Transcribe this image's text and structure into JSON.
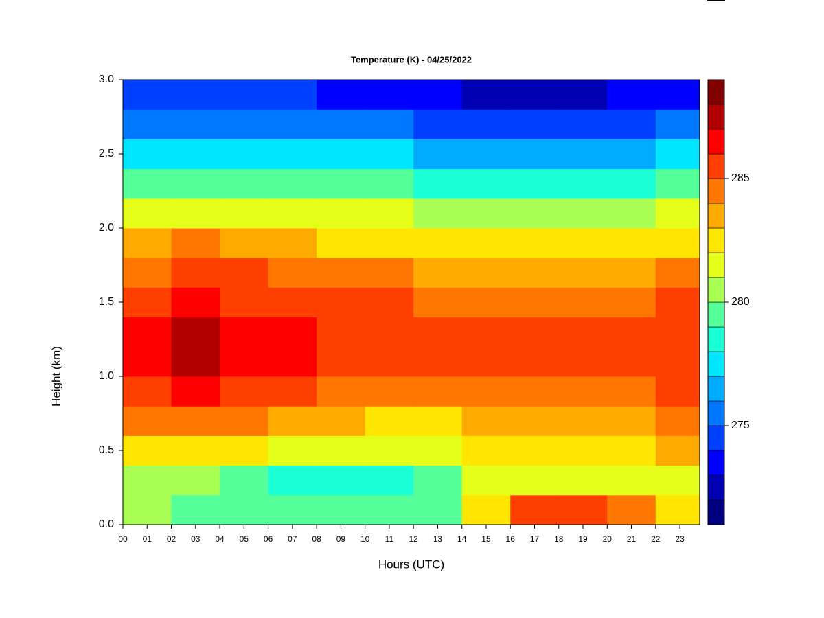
{
  "chart_data": {
    "type": "heatmap",
    "title": "Temperature (K) - 04/25/2022",
    "x_label": "Hours (UTC)",
    "y_label": "Height (km)",
    "x": [
      1,
      3,
      5,
      7,
      9,
      11,
      13,
      15,
      17,
      19,
      21,
      23
    ],
    "y": [
      0.1,
      0.3,
      0.5,
      0.7,
      0.9,
      1.1,
      1.3,
      1.5,
      1.7,
      1.9,
      2.1,
      2.3,
      2.5,
      2.7,
      2.9
    ],
    "values": [
      [
        280,
        279.5,
        279,
        279,
        279,
        279,
        279.5,
        282,
        285,
        285,
        284,
        282
      ],
      [
        280,
        280,
        279,
        278.5,
        278,
        278,
        279,
        281,
        281.5,
        281.5,
        281,
        281
      ],
      [
        282,
        282.5,
        282,
        281,
        281,
        281,
        281.5,
        282,
        282,
        282,
        282.5,
        283
      ],
      [
        284,
        284.5,
        284,
        283.5,
        283,
        282.5,
        282.5,
        283,
        283,
        283,
        283,
        284
      ],
      [
        285.5,
        286,
        285.5,
        285,
        284.5,
        284,
        284,
        284,
        284,
        284,
        284,
        285
      ],
      [
        286.5,
        287,
        286.5,
        286,
        285.5,
        285.5,
        285,
        285,
        285,
        285,
        285,
        285.5
      ],
      [
        286.5,
        287,
        286.5,
        286,
        285.5,
        285.5,
        285,
        285,
        285,
        285,
        285,
        285.5
      ],
      [
        285.5,
        286,
        285.5,
        285.5,
        285,
        285,
        284.5,
        284.5,
        284.5,
        284.5,
        284.5,
        285
      ],
      [
        284.5,
        285,
        285,
        284.5,
        284,
        284,
        283.5,
        283.5,
        283.5,
        283.5,
        283.5,
        284
      ],
      [
        283.5,
        284,
        283.5,
        283,
        282.5,
        282.5,
        282.5,
        282,
        282,
        282,
        282,
        282.5
      ],
      [
        281.5,
        281.5,
        281.5,
        281,
        281,
        281,
        280.5,
        280.5,
        280.5,
        280.5,
        280.5,
        281
      ],
      [
        279.5,
        279.5,
        279.5,
        279.5,
        279,
        279,
        278.5,
        278.5,
        278.5,
        278.5,
        278.5,
        279
      ],
      [
        277.5,
        277.5,
        277.5,
        277.5,
        277,
        277,
        276.5,
        276,
        276,
        276,
        276.5,
        277
      ],
      [
        275.5,
        275.5,
        275.5,
        275.5,
        275,
        275,
        274.5,
        274,
        274,
        274,
        274.5,
        275
      ],
      [
        274,
        274,
        274,
        274,
        273.5,
        273.5,
        273,
        272.5,
        272.5,
        272.5,
        273,
        273.5
      ]
    ],
    "xlim": [
      0,
      23.82
    ],
    "ylim": [
      0,
      3
    ],
    "xticks": [
      {
        "value": 0,
        "label": "00"
      },
      {
        "value": 1,
        "label": "01"
      },
      {
        "value": 2,
        "label": "02"
      },
      {
        "value": 3,
        "label": "03"
      },
      {
        "value": 4,
        "label": "04"
      },
      {
        "value": 5,
        "label": "05"
      },
      {
        "value": 6,
        "label": "06"
      },
      {
        "value": 7,
        "label": "07"
      },
      {
        "value": 8,
        "label": "08"
      },
      {
        "value": 9,
        "label": "09"
      },
      10,
      11,
      12,
      13,
      14,
      15,
      16,
      17,
      18,
      19,
      20,
      21,
      22,
      23
    ],
    "yticks": [
      {
        "value": 0,
        "label": "0.0"
      },
      0.5,
      {
        "value": 1,
        "label": "1.0"
      },
      1.5,
      {
        "value": 2,
        "label": "2.0"
      },
      2.5,
      {
        "value": 3,
        "label": "3.0"
      }
    ],
    "zlim": [
      271,
      289
    ],
    "colorbar_ticks": [
      275,
      280,
      285
    ],
    "colors": [
      "#000080",
      "#0000b3",
      "#0000ff",
      "#0040ff",
      "#0077ff",
      "#00aaff",
      "#00e6ff",
      "#1affd5",
      "#55ff99",
      "#aaff55",
      "#e6ff1a",
      "#ffe600",
      "#ffaa00",
      "#ff7700",
      "#ff4000",
      "#ff0000",
      "#b30000",
      "#800000"
    ]
  }
}
